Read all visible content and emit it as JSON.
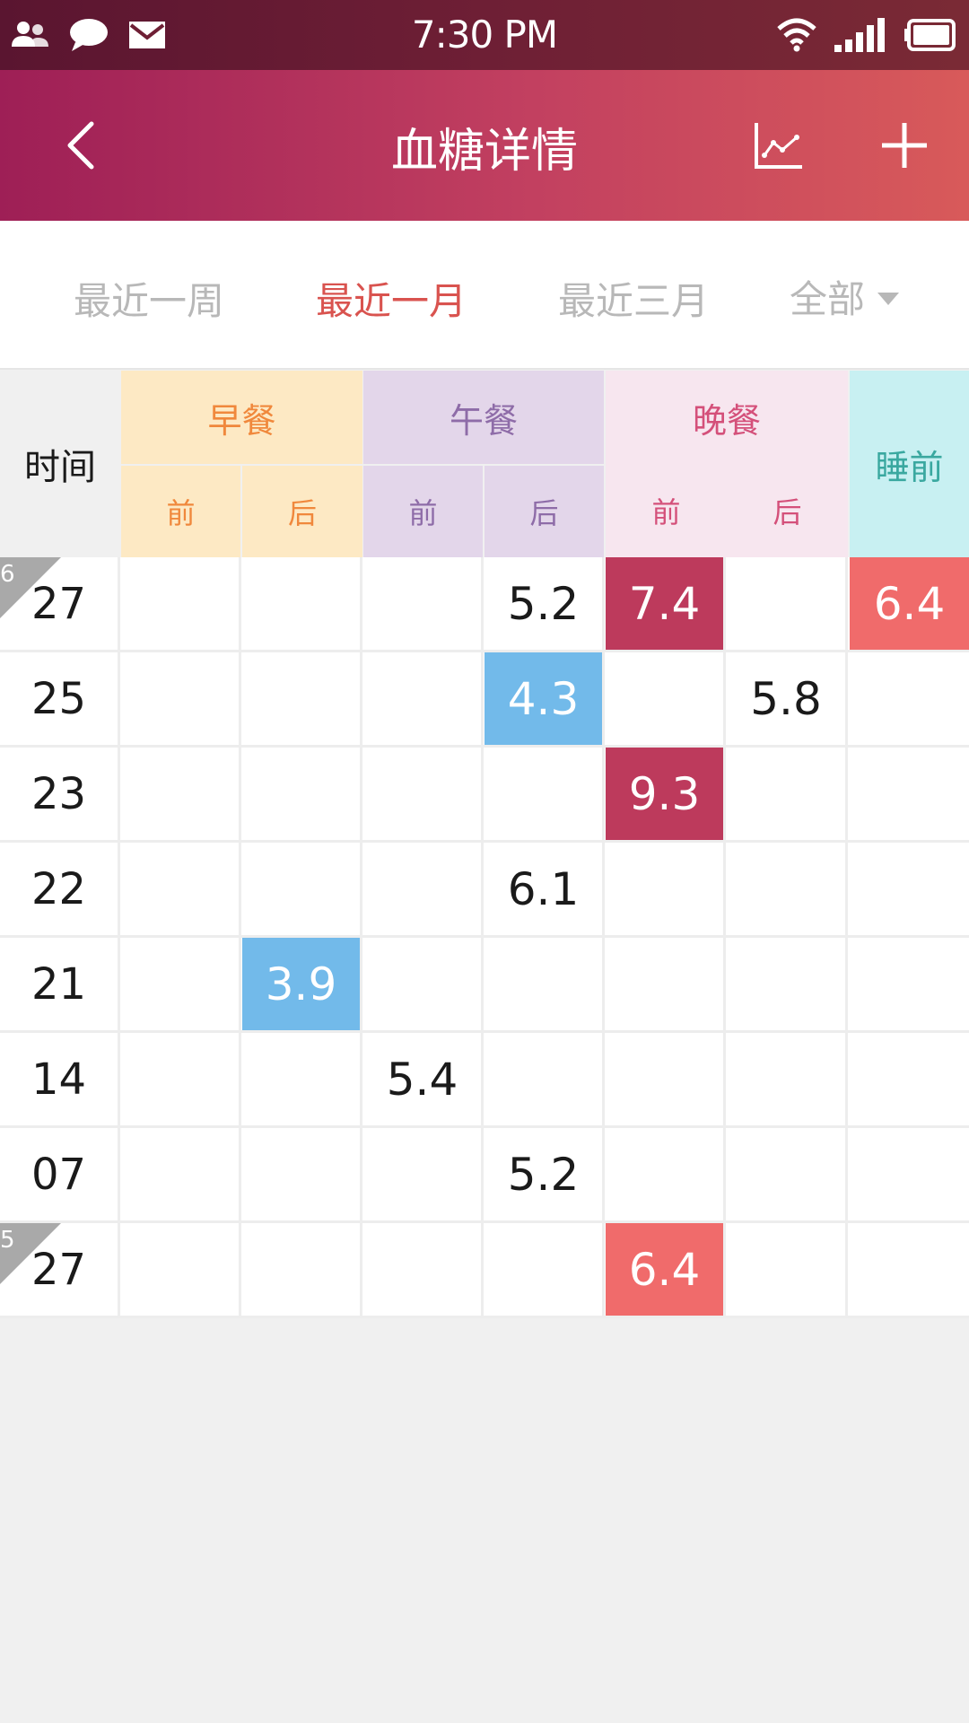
{
  "status_bar": {
    "time": "7:30 PM",
    "icons": [
      "contacts-icon",
      "chat-bubble-icon",
      "mail-icon",
      "wifi-icon",
      "signal-icon",
      "battery-icon"
    ]
  },
  "header": {
    "title": "血糖详情",
    "icons": [
      "back-chevron-icon",
      "line-chart-icon",
      "plus-icon"
    ]
  },
  "tabs": {
    "items": [
      "最近一周",
      "最近一月",
      "最近三月",
      "全部"
    ],
    "active_index": 1
  },
  "table": {
    "time_header": "时间",
    "groups": [
      {
        "label": "早餐",
        "sub": [
          "前",
          "后"
        ],
        "color": "#f0883c",
        "bg": "#fde9c4"
      },
      {
        "label": "午餐",
        "sub": [
          "前",
          "后"
        ],
        "color": "#8e6ca8",
        "bg": "#e3d6ea"
      },
      {
        "label": "晚餐",
        "sub": [
          "前",
          "后"
        ],
        "color": "#d4507a",
        "bg": "#f7e6ef"
      },
      {
        "label": "睡前",
        "sub": [],
        "color": "#3aa8a0",
        "bg": "#c8f0f2"
      }
    ],
    "rows": [
      {
        "month": "6",
        "date": "27",
        "cells": [
          "",
          "",
          "",
          "5.2",
          "7.4",
          "",
          "6.4"
        ],
        "status": [
          "",
          "",
          "",
          "",
          "high",
          "",
          "warn"
        ]
      },
      {
        "month": "",
        "date": "25",
        "cells": [
          "",
          "",
          "",
          "4.3",
          "",
          "5.8",
          ""
        ],
        "status": [
          "",
          "",
          "",
          "low",
          "",
          "",
          ""
        ]
      },
      {
        "month": "",
        "date": "23",
        "cells": [
          "",
          "",
          "",
          "",
          "9.3",
          "",
          ""
        ],
        "status": [
          "",
          "",
          "",
          "",
          "high",
          "",
          ""
        ]
      },
      {
        "month": "",
        "date": "22",
        "cells": [
          "",
          "",
          "",
          "6.1",
          "",
          "",
          ""
        ],
        "status": [
          "",
          "",
          "",
          "",
          "",
          "",
          ""
        ]
      },
      {
        "month": "",
        "date": "21",
        "cells": [
          "",
          "3.9",
          "",
          "",
          "",
          "",
          ""
        ],
        "status": [
          "",
          "low",
          "",
          "",
          "",
          "",
          ""
        ]
      },
      {
        "month": "",
        "date": "14",
        "cells": [
          "",
          "",
          "5.4",
          "",
          "",
          "",
          ""
        ],
        "status": [
          "",
          "",
          "",
          "",
          "",
          "",
          ""
        ]
      },
      {
        "month": "",
        "date": "07",
        "cells": [
          "",
          "",
          "",
          "5.2",
          "",
          "",
          ""
        ],
        "status": [
          "",
          "",
          "",
          "",
          "",
          "",
          ""
        ]
      },
      {
        "month": "5",
        "date": "27",
        "cells": [
          "",
          "",
          "",
          "",
          "6.4",
          "",
          ""
        ],
        "status": [
          "",
          "",
          "",
          "",
          "warn",
          "",
          ""
        ]
      }
    ]
  },
  "colors": {
    "high": "#bd3a5c",
    "warn": "#f06b6b",
    "low": "#72baea",
    "active_tab": "#d9534f"
  }
}
